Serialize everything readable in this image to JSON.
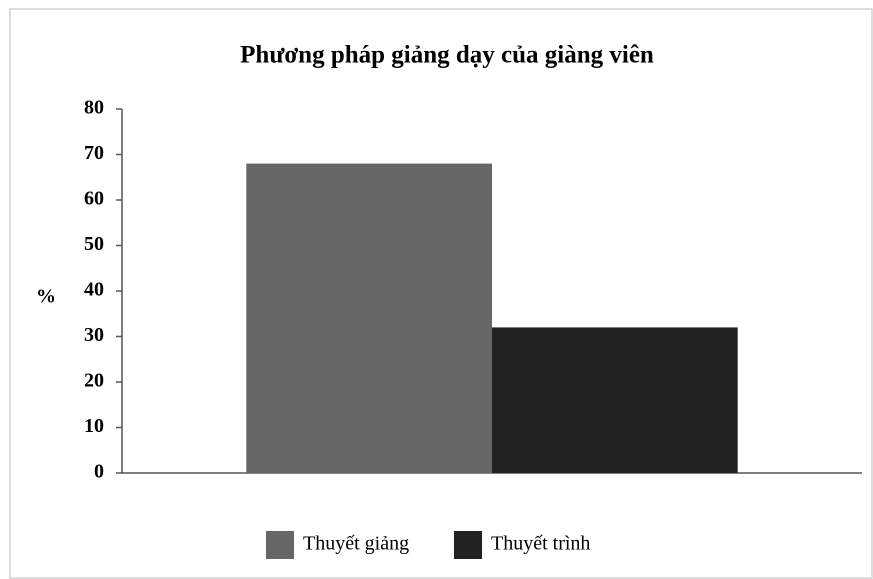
{
  "chart_data": {
    "type": "bar",
    "title": "Phương pháp giảng dạy của giàng viên",
    "ylabel": "%",
    "categories": [
      null
    ],
    "series": [
      {
        "name": "Thuyết giảng",
        "color": "#666666",
        "values": [
          68
        ]
      },
      {
        "name": "Thuyết trình",
        "color": "#222222",
        "values": [
          32
        ]
      }
    ],
    "ylim": [
      0,
      80
    ],
    "yticks": [
      0,
      10,
      20,
      30,
      40,
      50,
      60,
      70,
      80
    ],
    "grid": false,
    "legend": "bottom"
  }
}
